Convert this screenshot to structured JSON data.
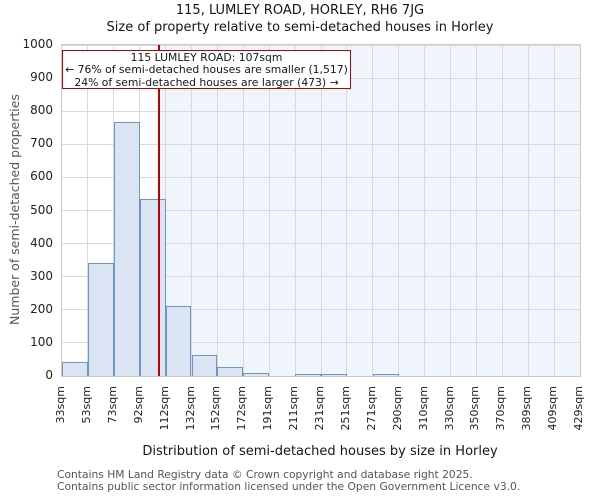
{
  "title": "115, LUMLEY ROAD, HORLEY, RH6 7JG",
  "subtitle": "Size of property relative to semi-detached houses in Horley",
  "annotation": {
    "line1": "115 LUMLEY ROAD: 107sqm",
    "line2": "← 76% of semi-detached houses are smaller (1,517)",
    "line3": "24% of semi-detached houses are larger (473) →"
  },
  "chart_data": {
    "type": "bar",
    "title": "115, LUMLEY ROAD, HORLEY, RH6 7JG",
    "subtitle": "Size of property relative to semi-detached houses in Horley",
    "xlabel": "Distribution of semi-detached houses by size in Horley",
    "ylabel": "Number of semi-detached properties",
    "bin_edges": [
      33,
      53,
      73,
      92,
      112,
      132,
      152,
      172,
      191,
      211,
      231,
      251,
      271,
      290,
      310,
      330,
      350,
      370,
      389,
      409,
      429
    ],
    "tick_labels": [
      "33sqm",
      "53sqm",
      "73sqm",
      "92sqm",
      "112sqm",
      "132sqm",
      "152sqm",
      "172sqm",
      "191sqm",
      "211sqm",
      "231sqm",
      "251sqm",
      "271sqm",
      "290sqm",
      "310sqm",
      "330sqm",
      "350sqm",
      "370sqm",
      "389sqm",
      "409sqm",
      "429sqm"
    ],
    "values": [
      42,
      340,
      767,
      534,
      212,
      62,
      26,
      10,
      0,
      5,
      5,
      0,
      5,
      0,
      0,
      0,
      0,
      0,
      0,
      0
    ],
    "ylim": [
      0,
      1000
    ],
    "yticks": [
      0,
      100,
      200,
      300,
      400,
      500,
      600,
      700,
      800,
      900,
      1000
    ],
    "grid": true,
    "marker_value": 107,
    "shade_side": "right",
    "colors": {
      "bar_fill": "#dae4f3",
      "bar_edge": "#6b94c9",
      "marker": "#bb0000",
      "shade": "#f0f4fb",
      "grid": "#d9d9d9",
      "annotation_border": "#bb0000"
    }
  },
  "footer": {
    "line1": "Contains HM Land Registry data © Crown copyright and database right 2025.",
    "line2": "Contains public sector information licensed under the Open Government Licence v3.0."
  }
}
